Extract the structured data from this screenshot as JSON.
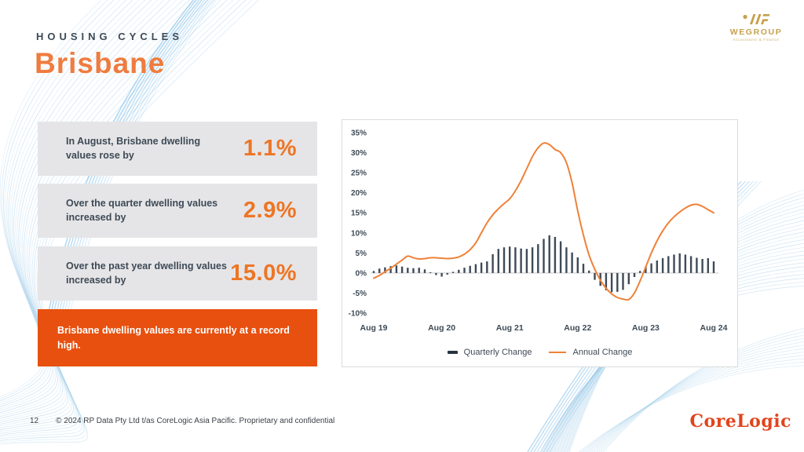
{
  "slide": {
    "eyebrow": "HOUSING CYCLES",
    "title": "Brisbane",
    "page_number": "12",
    "copyright": "© 2024 RP Data Pty Ltd t/as CoreLogic Asia Pacific. Proprietary and confidential"
  },
  "stats": [
    {
      "label": "In August, Brisbane dwelling values rose by",
      "value": "1.1%"
    },
    {
      "label": "Over the quarter dwelling values increased by",
      "value": "2.9%"
    },
    {
      "label": "Over the past year dwelling values increased by",
      "value": "15.0%"
    }
  ],
  "callout": {
    "text": "Brisbane dwelling values are currently at a record high."
  },
  "logos": {
    "wegroup": {
      "name": "WEGROUP",
      "tagline": "Accountants & Finance"
    },
    "corelogic": "CoreLogic"
  },
  "colors": {
    "accent_orange": "#EE7524",
    "title_orange": "#EF7C3F",
    "callout_bg": "#E8500F",
    "bar_navy": "#3E4A57",
    "line_orange": "#EF8138",
    "card_gray": "#E5E5E7",
    "text_dark": "#3E4A56",
    "gold": "#C6A14C",
    "logo_red": "#E1451D",
    "wave_blue": "#AFD4EC",
    "wave_bright": "#57A8DF"
  },
  "chart_data": {
    "type": "bar+line",
    "x_start": "Aug 2019",
    "x_end": "Aug 2024",
    "interval": "monthly",
    "x_tick_labels": [
      "Aug 19",
      "Aug 20",
      "Aug 21",
      "Aug 22",
      "Aug 23",
      "Aug 24"
    ],
    "x_tick_indices": [
      0,
      12,
      24,
      36,
      48,
      60
    ],
    "ylim": [
      -10,
      35
    ],
    "yticks": [
      35,
      30,
      25,
      20,
      15,
      10,
      5,
      0,
      -5,
      -10
    ],
    "ytick_suffix": "%",
    "grid": false,
    "legend_position": "bottom",
    "series": [
      {
        "name": "Quarterly Change",
        "type": "bar",
        "values": [
          0.5,
          1.1,
          1.4,
          1.7,
          1.9,
          1.6,
          1.3,
          1.2,
          1.3,
          0.9,
          0.2,
          -0.5,
          -0.9,
          -0.4,
          0.3,
          0.8,
          1.3,
          1.8,
          2.2,
          2.6,
          2.9,
          4.7,
          6.0,
          6.4,
          6.6,
          6.4,
          6.1,
          6.0,
          6.4,
          7.2,
          8.5,
          9.4,
          9.0,
          7.9,
          6.4,
          5.1,
          3.9,
          2.3,
          0.6,
          -1.7,
          -3.2,
          -4.3,
          -4.8,
          -4.7,
          -4.2,
          -2.8,
          -1.0,
          0.5,
          1.6,
          2.4,
          3.1,
          3.7,
          4.2,
          4.6,
          4.9,
          4.6,
          4.2,
          3.8,
          3.5,
          3.7,
          2.9
        ]
      },
      {
        "name": "Annual Change",
        "type": "line",
        "values": [
          -1.3,
          -0.6,
          0.3,
          1.2,
          2.2,
          3.2,
          4.2,
          3.8,
          3.5,
          3.6,
          3.8,
          3.8,
          3.7,
          3.6,
          3.7,
          4.0,
          4.7,
          5.8,
          7.5,
          10.0,
          12.5,
          14.5,
          16.0,
          17.3,
          18.5,
          20.5,
          23.0,
          26.0,
          29.0,
          31.2,
          32.4,
          32.0,
          30.8,
          30.0,
          27.5,
          22.5,
          15.5,
          9.5,
          4.5,
          1.0,
          -1.8,
          -3.8,
          -5.2,
          -6.1,
          -6.5,
          -6.6,
          -5.0,
          -2.0,
          1.5,
          5.0,
          8.0,
          10.5,
          12.5,
          14.0,
          15.2,
          16.2,
          16.9,
          17.1,
          16.6,
          15.8,
          15.0
        ]
      }
    ]
  }
}
